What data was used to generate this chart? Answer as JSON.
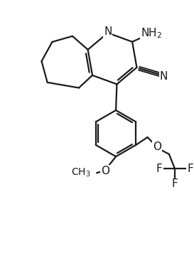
{
  "bg_color": "#ffffff",
  "line_color": "#1a1a1a",
  "line_width": 1.6,
  "font_size": 10,
  "figsize": [
    2.73,
    3.6
  ],
  "dpi": 100,
  "xlim": [
    0,
    10
  ],
  "ylim": [
    0,
    13.2
  ]
}
